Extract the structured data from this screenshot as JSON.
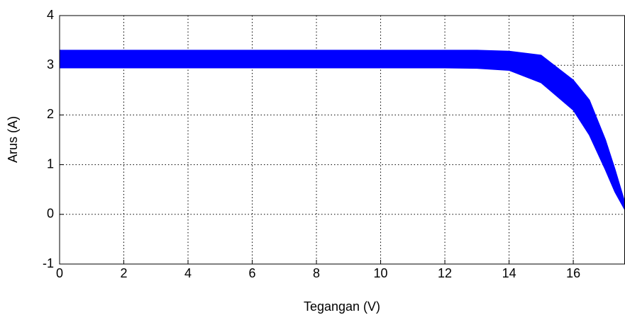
{
  "chart_data": {
    "type": "line",
    "xlabel": "Tegangan (V)",
    "ylabel": "Arus (A)",
    "x": [
      0,
      2,
      4,
      6,
      8,
      10,
      12,
      13,
      14,
      15,
      16,
      16.5,
      17,
      17.3,
      17.6
    ],
    "series": [
      {
        "color": "#0000ff",
        "values": [
          3.3,
          3.3,
          3.3,
          3.3,
          3.3,
          3.3,
          3.3,
          3.3,
          3.28,
          3.2,
          2.7,
          2.3,
          1.5,
          0.9,
          0.25
        ]
      },
      {
        "color": "#0000ff",
        "values": [
          2.95,
          2.95,
          2.95,
          2.95,
          2.95,
          2.95,
          2.95,
          2.94,
          2.9,
          2.65,
          2.1,
          1.6,
          0.9,
          0.45,
          0.1
        ]
      }
    ],
    "fill_between": true,
    "xlim": [
      0,
      17.6
    ],
    "ylim": [
      -1,
      4
    ],
    "xticks": [
      0,
      2,
      4,
      6,
      8,
      10,
      12,
      14,
      16
    ],
    "yticks": [
      -1,
      0,
      1,
      2,
      3,
      4
    ],
    "grid": true
  }
}
